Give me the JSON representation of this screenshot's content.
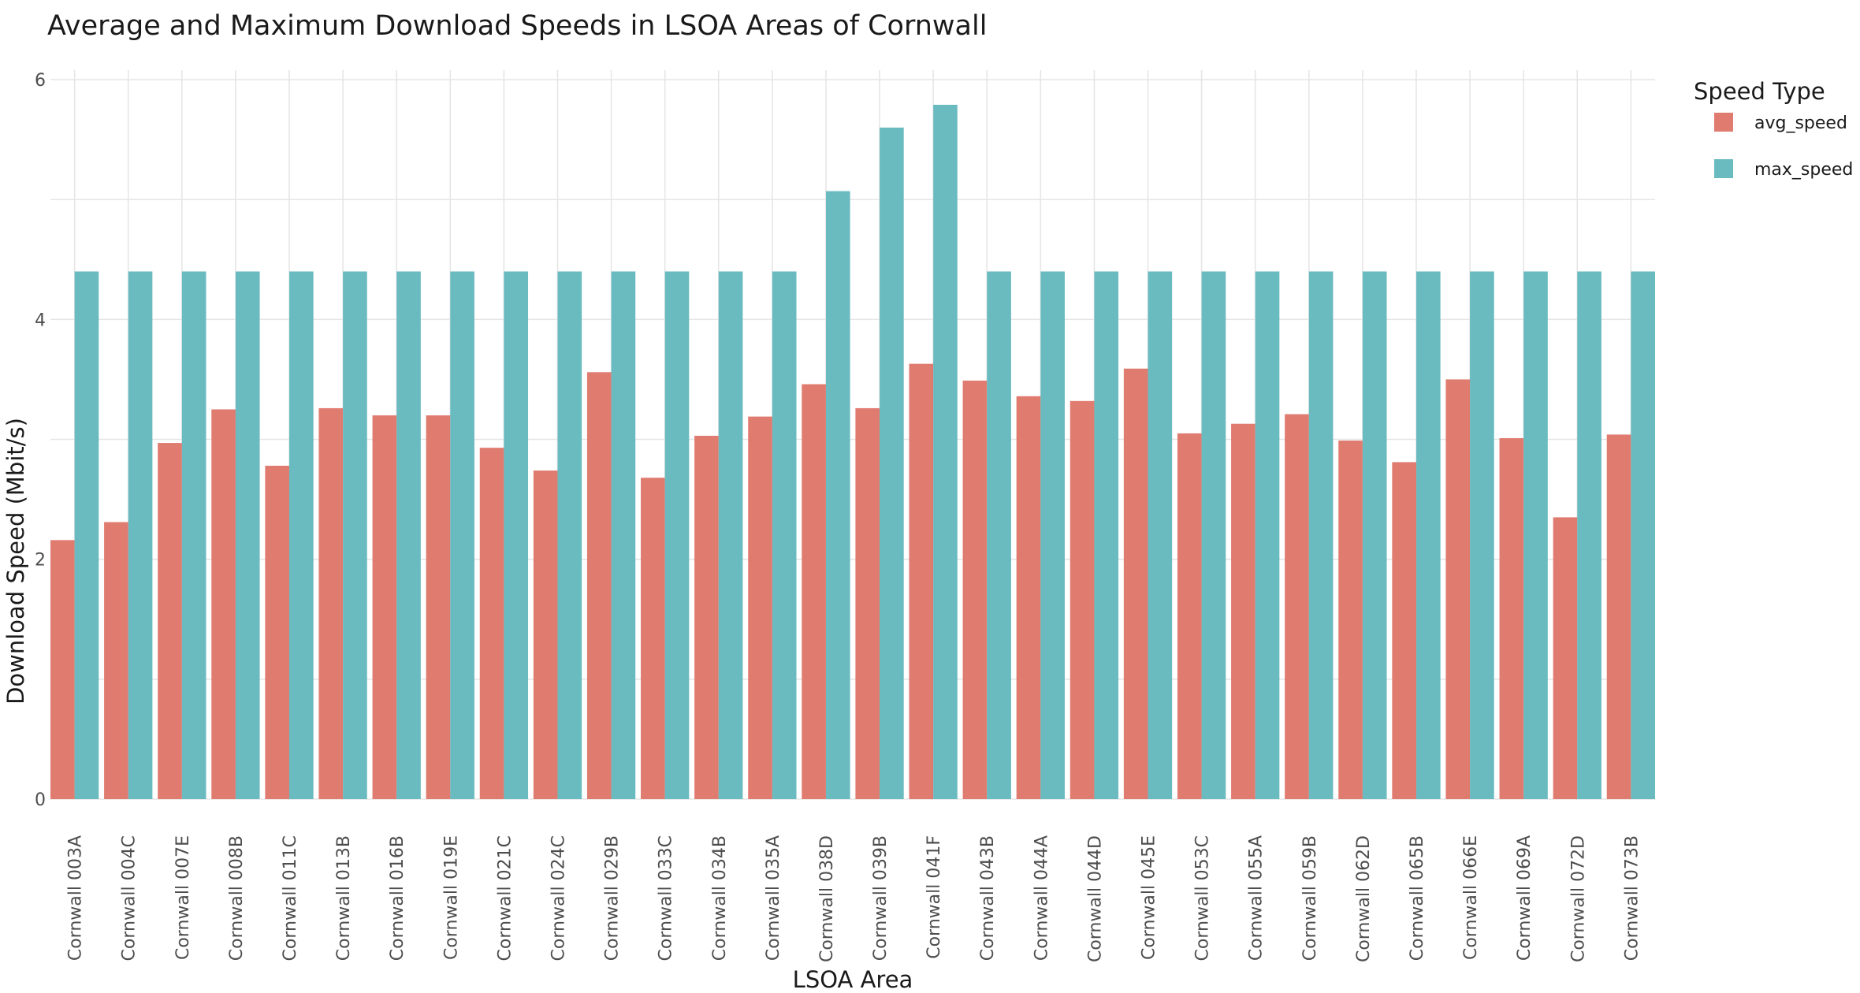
{
  "chart_data": {
    "type": "bar",
    "title": "Average and Maximum Download Speeds in LSOA Areas of Cornwall",
    "xlabel": "LSOA Area",
    "ylabel": "Download Speed (Mbit/s)",
    "ylim": [
      0,
      6
    ],
    "yticks": [
      0,
      2,
      4,
      6
    ],
    "grid": true,
    "legend": {
      "title": "Speed Type",
      "placement": "right"
    },
    "categories": [
      "Cornwall 003A",
      "Cornwall 004C",
      "Cornwall 007E",
      "Cornwall 008B",
      "Cornwall 011C",
      "Cornwall 013B",
      "Cornwall 016B",
      "Cornwall 019E",
      "Cornwall 021C",
      "Cornwall 024C",
      "Cornwall 029B",
      "Cornwall 033C",
      "Cornwall 034B",
      "Cornwall 035A",
      "Cornwall 038D",
      "Cornwall 039B",
      "Cornwall 041F",
      "Cornwall 043B",
      "Cornwall 044A",
      "Cornwall 044D",
      "Cornwall 045E",
      "Cornwall 053C",
      "Cornwall 055A",
      "Cornwall 059B",
      "Cornwall 062D",
      "Cornwall 065B",
      "Cornwall 066E",
      "Cornwall 069A",
      "Cornwall 072D",
      "Cornwall 073B"
    ],
    "series": [
      {
        "name": "avg_speed",
        "color": "#E07B70",
        "values": [
          2.16,
          2.31,
          2.97,
          3.25,
          2.78,
          3.26,
          3.2,
          3.2,
          2.93,
          2.74,
          3.56,
          2.68,
          3.03,
          3.19,
          3.46,
          3.26,
          3.63,
          3.49,
          3.36,
          3.32,
          3.59,
          3.05,
          3.13,
          3.21,
          2.99,
          2.81,
          3.5,
          3.01,
          2.35,
          3.04
        ]
      },
      {
        "name": "max_speed",
        "color": "#6ABBC0",
        "values": [
          4.4,
          4.4,
          4.4,
          4.4,
          4.4,
          4.4,
          4.4,
          4.4,
          4.4,
          4.4,
          4.4,
          4.4,
          4.4,
          4.4,
          5.07,
          5.6,
          5.79,
          4.4,
          4.4,
          4.4,
          4.4,
          4.4,
          4.4,
          4.4,
          4.4,
          4.4,
          4.4,
          4.4,
          4.4,
          4.4
        ]
      }
    ]
  }
}
